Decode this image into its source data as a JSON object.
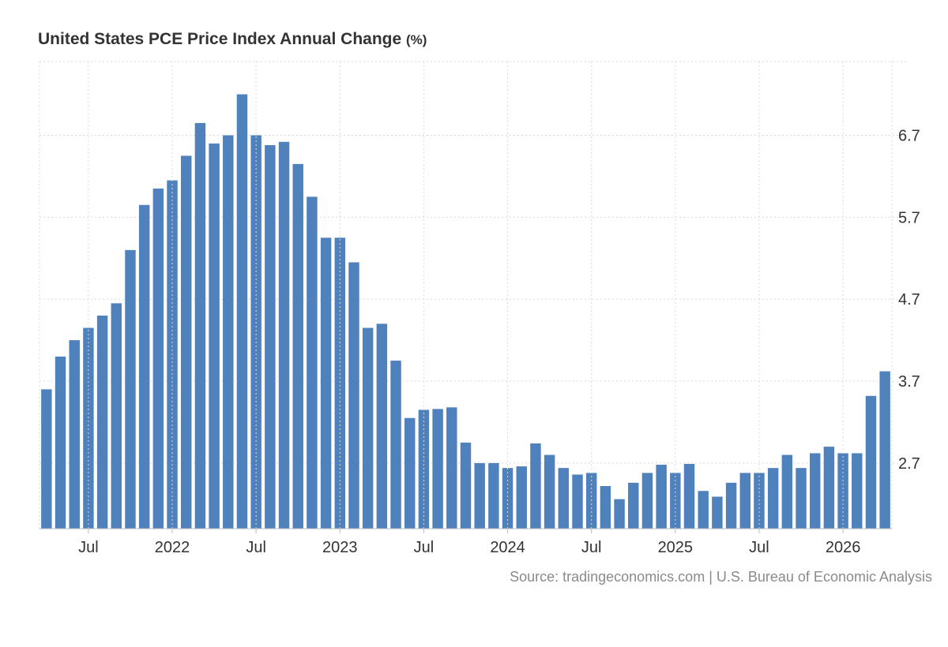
{
  "chart_data": {
    "type": "bar",
    "title": "United States PCE Price Index Annual Change",
    "title_unit": "(%)",
    "source": "Source: tradingeconomics.com | U.S. Bureau of Economic Analysis",
    "bar_color": "#4f81bd",
    "grid": true,
    "y_axis_position": "right",
    "ylim": [
      1.9,
      7.6
    ],
    "yticks": [
      2.7,
      3.7,
      4.7,
      5.7,
      6.7
    ],
    "ytick_labels": [
      "2.7",
      "3.7",
      "4.7",
      "5.7",
      "6.7"
    ],
    "categories": [
      "2021-04",
      "2021-05",
      "2021-06",
      "2021-07",
      "2021-08",
      "2021-09",
      "2021-10",
      "2021-11",
      "2021-12",
      "2022-01",
      "2022-02",
      "2022-03",
      "2022-04",
      "2022-05",
      "2022-06",
      "2022-07",
      "2022-08",
      "2022-09",
      "2022-10",
      "2022-11",
      "2022-12",
      "2023-01",
      "2023-02",
      "2023-03",
      "2023-04",
      "2023-05",
      "2023-06",
      "2023-07",
      "2023-08",
      "2023-09",
      "2023-10",
      "2023-11",
      "2023-12",
      "2024-01",
      "2024-02",
      "2024-03",
      "2024-04",
      "2024-05",
      "2024-06",
      "2024-07",
      "2024-08",
      "2024-09",
      "2024-10",
      "2024-11",
      "2024-12",
      "2025-01",
      "2025-02",
      "2025-03",
      "2025-04",
      "2025-05",
      "2025-06",
      "2025-07",
      "2025-08",
      "2025-09",
      "2025-10",
      "2025-11",
      "2025-12",
      "2026-01",
      "2026-02",
      "2026-03",
      "2026-04"
    ],
    "values": [
      3.6,
      4.0,
      4.2,
      4.35,
      4.5,
      4.65,
      5.3,
      5.85,
      6.05,
      6.15,
      6.45,
      6.85,
      6.6,
      6.7,
      7.2,
      6.7,
      6.58,
      6.62,
      6.35,
      5.95,
      5.45,
      5.45,
      5.15,
      4.35,
      4.4,
      3.95,
      3.25,
      3.35,
      3.36,
      3.38,
      2.95,
      2.7,
      2.7,
      2.64,
      2.66,
      2.94,
      2.8,
      2.64,
      2.56,
      2.58,
      2.42,
      2.26,
      2.46,
      2.58,
      2.68,
      2.58,
      2.69,
      2.36,
      2.29,
      2.46,
      2.58,
      2.58,
      2.64,
      2.8,
      2.64,
      2.82,
      2.9,
      2.82,
      2.82,
      3.52,
      3.82
    ],
    "xtick_labels": [
      {
        "index": 3,
        "label": "Jul"
      },
      {
        "index": 9,
        "label": "2022"
      },
      {
        "index": 15,
        "label": "Jul"
      },
      {
        "index": 21,
        "label": "2023"
      },
      {
        "index": 27,
        "label": "Jul"
      },
      {
        "index": 33,
        "label": "2024"
      },
      {
        "index": 39,
        "label": "Jul"
      },
      {
        "index": 45,
        "label": "2025"
      },
      {
        "index": 51,
        "label": "Jul"
      },
      {
        "index": 57,
        "label": "2026"
      }
    ]
  }
}
